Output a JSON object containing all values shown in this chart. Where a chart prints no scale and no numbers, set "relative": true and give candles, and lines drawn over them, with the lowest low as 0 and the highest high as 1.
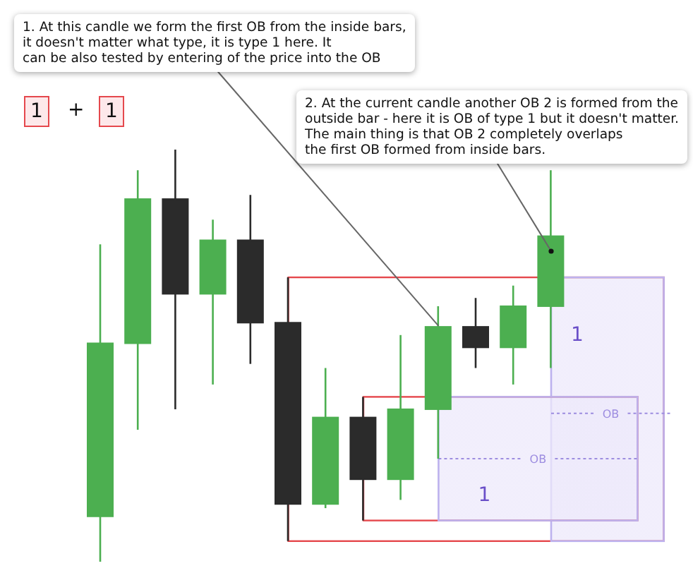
{
  "chart_data": {
    "type": "candlestick",
    "relative": true,
    "categories": [
      null,
      null,
      null,
      null,
      null,
      null,
      null,
      null,
      null,
      null,
      null,
      null,
      null
    ],
    "ohlc": [
      [
        0.11,
        0.77,
        0,
        0.53
      ],
      [
        0.53,
        0.95,
        0.32,
        0.88
      ],
      [
        0.88,
        1,
        0.37,
        0.65
      ],
      [
        0.65,
        0.83,
        0.43,
        0.78
      ],
      [
        0.78,
        0.89,
        0.48,
        0.58
      ],
      [
        0.58,
        0.69,
        0.05,
        0.14
      ],
      [
        0.14,
        0.47,
        0.13,
        0.35
      ],
      [
        0.35,
        0.4,
        0.1,
        0.2
      ],
      [
        0.2,
        0.55,
        0.15,
        0.37
      ],
      [
        0.37,
        0.62,
        0.25,
        0.57
      ],
      [
        0.57,
        0.64,
        0.47,
        0.52
      ],
      [
        0.52,
        0.67,
        0.43,
        0.62
      ],
      [
        0.62,
        0.95,
        0.47,
        0.79
      ]
    ],
    "colors": [
      "#4caf50",
      "#4caf50",
      "#2b2b2b",
      "#4caf50",
      "#2b2b2b",
      "#2b2b2b",
      "#4caf50",
      "#2b2b2b",
      "#4caf50",
      "#4caf50",
      "#2b2b2b",
      "#4caf50",
      "#4caf50"
    ],
    "bands": [
      {
        "axis": "y",
        "from": 0.05,
        "to": 0.69,
        "label": "1",
        "color": "#e5484d"
      },
      {
        "axis": "y",
        "from": 0.1,
        "to": 0.4,
        "label": "1",
        "color": "#e5484d"
      }
    ],
    "ref_lines": [
      {
        "axis": "y",
        "value": 0.36,
        "label": "OB",
        "color": "#9d8de0",
        "line_style": "dotted"
      },
      {
        "axis": "y",
        "value": 0.25,
        "label": "OB",
        "color": "#9d8de0",
        "line_style": "dotted"
      }
    ],
    "annotations": [
      "1. At this candle we form the first OB from the inside bars,\nit doesn't matter what type, it is type 1 here. It\ncan be also tested by entering of the price into the OB",
      "2. At the current candle another OB 2 is formed from the\noutside bar - here it is OB of type 1 but it doesn't matter.\nThe main thing is that OB 2 completely overlaps\nthe first OB formed from inside bars.",
      "1",
      "+",
      "1"
    ]
  }
}
